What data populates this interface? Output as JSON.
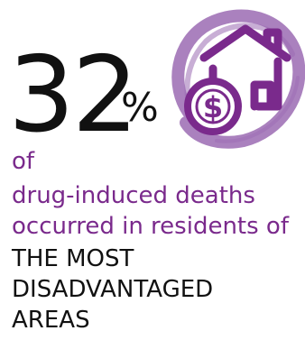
{
  "stat": {
    "value": "32",
    "unit": "%"
  },
  "description": {
    "line1": "of",
    "line2": "drug-induced deaths",
    "line3": "occurred in residents of"
  },
  "emphasis": {
    "line1": "THE MOST",
    "line2": "DISADVANTAGED",
    "line3": "AREAS"
  },
  "icon": {
    "name": "house-dollar-icon",
    "background": "brush-circle",
    "ring_color": "#9b6bb3",
    "glyph_color": "#7a2a8c"
  },
  "colors": {
    "accent": "#7a2a8c",
    "text": "#111111"
  }
}
